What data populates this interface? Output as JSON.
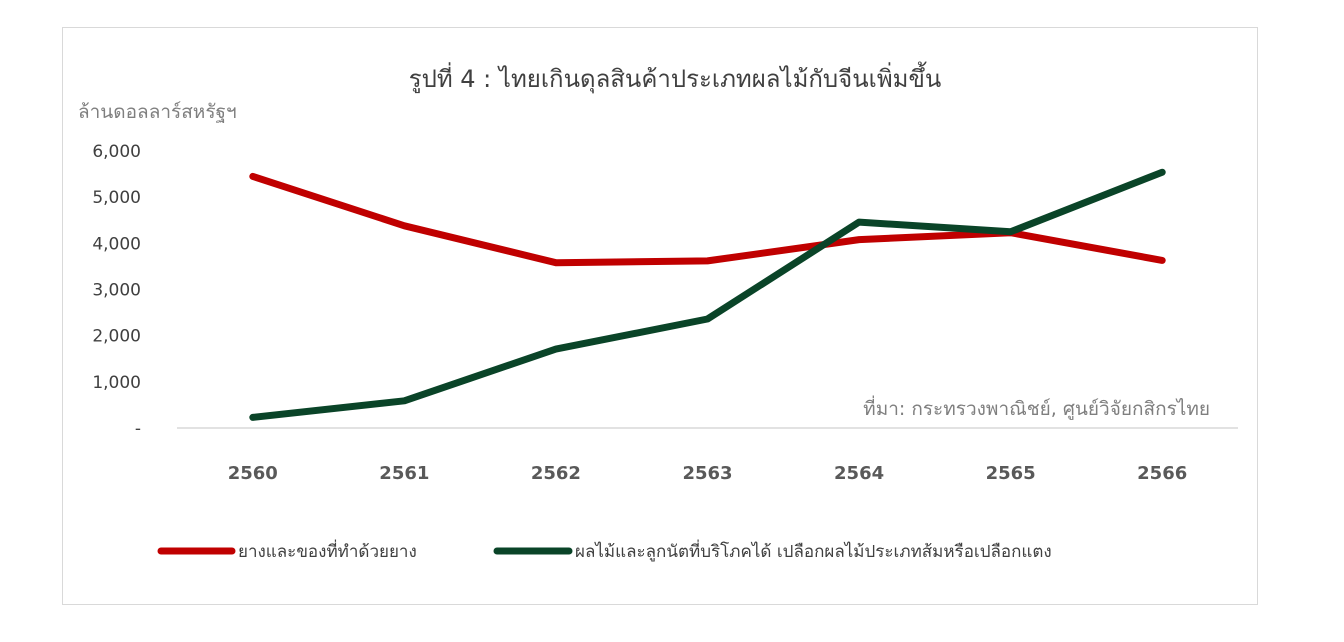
{
  "chart_data": {
    "type": "line",
    "title": "รูปที่ 4 : ไทยเกินดุลสินค้าประเภทผลไม้กับจีนเพิ่มขึ้น",
    "ylabel": "ล้านดอลลาร์สหรัฐฯ",
    "xlabel": "",
    "categories": [
      "2560",
      "2561",
      "2562",
      "2563",
      "2564",
      "2565",
      "2566"
    ],
    "yticks": [
      "-",
      "1,000",
      "2,000",
      "3,000",
      "4,000",
      "5,000",
      "6,000"
    ],
    "ytick_values": [
      0,
      1000,
      2000,
      3000,
      4000,
      5000,
      6000
    ],
    "ylim": [
      0,
      6000
    ],
    "grid": false,
    "legend_position": "bottom",
    "source_note": "ที่มา: กระทรวงพาณิชย์, ศูนย์วิจัยกสิกรไทย",
    "series": [
      {
        "name": "ยางและของที่ทำด้วยยาง",
        "color": "#c00000",
        "values": [
          5450,
          4380,
          3580,
          3620,
          4080,
          4230,
          3630
        ]
      },
      {
        "name": "ผลไม้และลูกนัตที่บริโภคได้ เปลือกผลไม้ประเภทส้มหรือเปลือกแตง",
        "color": "#0a4428",
        "values": [
          230,
          590,
          1710,
          2360,
          4460,
          4250,
          5540
        ]
      }
    ]
  }
}
